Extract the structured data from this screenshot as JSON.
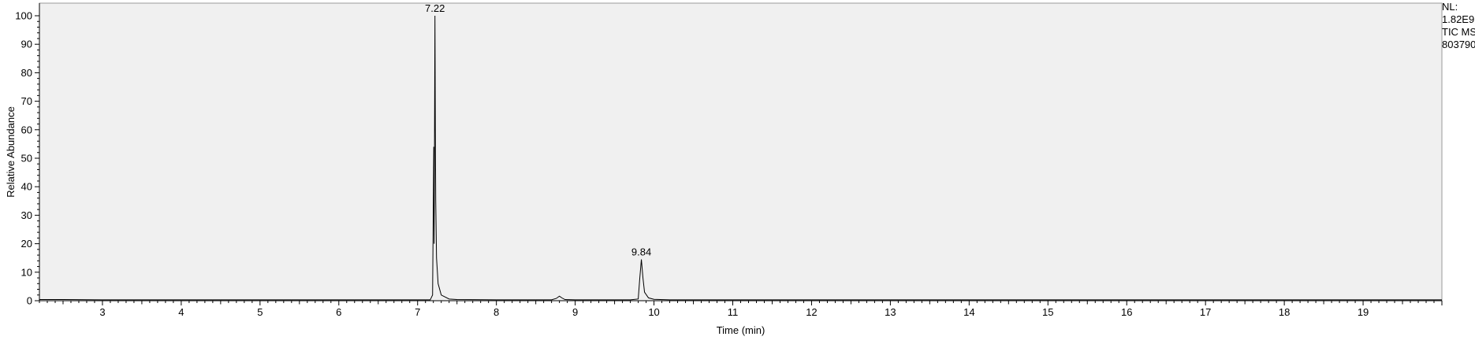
{
  "chart_data": {
    "type": "line",
    "xlabel": "Time (min)",
    "ylabel": "Relative Abundance",
    "xlim": [
      2.2,
      20.0
    ],
    "ylim": [
      0,
      100
    ],
    "x_ticks": [
      3,
      4,
      5,
      6,
      7,
      8,
      9,
      10,
      11,
      12,
      13,
      14,
      15,
      16,
      17,
      18,
      19
    ],
    "y_ticks": [
      0,
      10,
      20,
      30,
      40,
      50,
      60,
      70,
      80,
      90,
      100
    ],
    "grid": false,
    "background": "#f0f0f0",
    "line_color": "#000000",
    "series": [
      {
        "points": [
          [
            2.2,
            0.4
          ],
          [
            2.5,
            0.4
          ],
          [
            3.0,
            0.3
          ],
          [
            4.0,
            0.3
          ],
          [
            5.0,
            0.3
          ],
          [
            6.0,
            0.3
          ],
          [
            7.0,
            0.3
          ],
          [
            7.16,
            0.3
          ],
          [
            7.19,
            2.0
          ],
          [
            7.205,
            54
          ],
          [
            7.21,
            20
          ],
          [
            7.22,
            100
          ],
          [
            7.225,
            60
          ],
          [
            7.23,
            35
          ],
          [
            7.24,
            15
          ],
          [
            7.26,
            6
          ],
          [
            7.3,
            2.0
          ],
          [
            7.4,
            0.6
          ],
          [
            7.5,
            0.4
          ],
          [
            8.0,
            0.3
          ],
          [
            8.7,
            0.3
          ],
          [
            8.76,
            0.8
          ],
          [
            8.8,
            1.6
          ],
          [
            8.83,
            1.0
          ],
          [
            8.87,
            0.4
          ],
          [
            9.0,
            0.3
          ],
          [
            9.7,
            0.3
          ],
          [
            9.8,
            0.6
          ],
          [
            9.82,
            8
          ],
          [
            9.84,
            14.5
          ],
          [
            9.86,
            8
          ],
          [
            9.88,
            3
          ],
          [
            9.93,
            1.0
          ],
          [
            10.0,
            0.5
          ],
          [
            10.2,
            0.3
          ],
          [
            12.0,
            0.3
          ],
          [
            15.0,
            0.3
          ],
          [
            18.0,
            0.3
          ],
          [
            20.0,
            0.3
          ]
        ]
      }
    ],
    "annotations": [
      {
        "x": 7.22,
        "y": 100,
        "label": "7.22"
      },
      {
        "x": 9.84,
        "y": 14.5,
        "label": "9.84"
      }
    ]
  },
  "info": {
    "lines": [
      "NL:",
      "1.82E9",
      "TIC  MS",
      "803790"
    ]
  }
}
